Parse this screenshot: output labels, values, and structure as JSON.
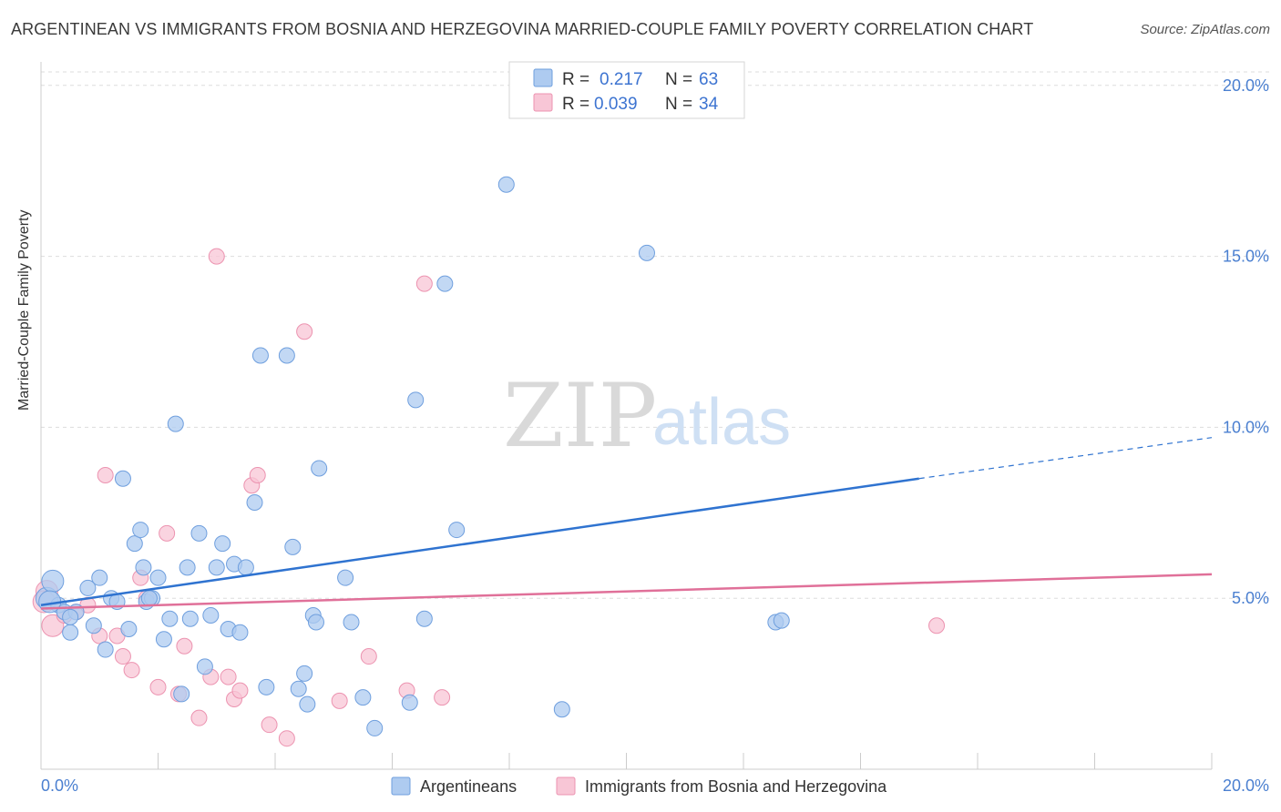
{
  "header": {
    "title": "ARGENTINEAN VS IMMIGRANTS FROM BOSNIA AND HERZEGOVINA MARRIED-COUPLE FAMILY POVERTY CORRELATION CHART",
    "source": "Source: ZipAtlas.com"
  },
  "watermark": {
    "zip": "ZIP",
    "atlas": "atlas"
  },
  "legend": {
    "rows": [
      {
        "r_label": "R =",
        "r_value": "0.217",
        "n_label": "N =",
        "n_value": "63"
      },
      {
        "r_label": "R =",
        "r_value": "0.039",
        "n_label": "N =",
        "n_value": "34"
      }
    ]
  },
  "colors": {
    "series1_fill": "#aecbf0",
    "series1_stroke": "#6f9fde",
    "series1_line": "#2f73d0",
    "series2_fill": "#f8c6d6",
    "series2_stroke": "#ec93b0",
    "series2_line": "#e07099",
    "tick_label": "#4a7fd0",
    "grid": "#dddddd"
  },
  "chart_data": {
    "type": "scatter",
    "title": "ARGENTINEAN VS IMMIGRANTS FROM BOSNIA AND HERZEGOVINA MARRIED-COUPLE FAMILY POVERTY CORRELATION CHART",
    "xlabel": "",
    "ylabel": "Married-Couple Family Poverty",
    "xlim": [
      0,
      20
    ],
    "ylim": [
      0,
      20.5
    ],
    "x_tick_labels": [
      "0.0%",
      "20.0%"
    ],
    "y_ticks": [
      5,
      10,
      15,
      20
    ],
    "y_tick_labels": [
      "5.0%",
      "10.0%",
      "15.0%",
      "20.0%"
    ],
    "grid": "horizontal dashed",
    "legend_position": "top-center",
    "series": [
      {
        "name": "Argentineans",
        "r": 0.217,
        "n": 63,
        "trend": {
          "x_start": 0,
          "y_start": 4.8,
          "x_solid_end": 15.0,
          "y_solid_end": 8.5,
          "x_end": 20,
          "y_end": 9.7
        },
        "points": [
          [
            0.1,
            5.0
          ],
          [
            0.2,
            5.5
          ],
          [
            0.3,
            4.8
          ],
          [
            0.4,
            4.6
          ],
          [
            0.5,
            4.0
          ],
          [
            0.6,
            4.6
          ],
          [
            0.8,
            5.3
          ],
          [
            0.9,
            4.2
          ],
          [
            1.0,
            5.6
          ],
          [
            1.1,
            3.5
          ],
          [
            1.2,
            5.0
          ],
          [
            1.3,
            4.9
          ],
          [
            1.4,
            8.5
          ],
          [
            1.5,
            4.1
          ],
          [
            1.6,
            6.6
          ],
          [
            1.7,
            7.0
          ],
          [
            1.75,
            5.9
          ],
          [
            1.8,
            4.9
          ],
          [
            1.9,
            5.0
          ],
          [
            2.0,
            5.6
          ],
          [
            2.1,
            3.8
          ],
          [
            2.2,
            4.4
          ],
          [
            2.3,
            10.1
          ],
          [
            2.4,
            2.2
          ],
          [
            2.5,
            5.9
          ],
          [
            2.55,
            4.4
          ],
          [
            2.7,
            6.9
          ],
          [
            2.8,
            3.0
          ],
          [
            2.9,
            4.5
          ],
          [
            3.0,
            5.9
          ],
          [
            3.1,
            6.6
          ],
          [
            3.2,
            4.1
          ],
          [
            3.3,
            6.0
          ],
          [
            3.4,
            4.0
          ],
          [
            3.5,
            5.9
          ],
          [
            3.65,
            7.8
          ],
          [
            3.75,
            12.1
          ],
          [
            3.85,
            2.4
          ],
          [
            4.2,
            12.1
          ],
          [
            4.3,
            6.5
          ],
          [
            4.4,
            2.35
          ],
          [
            4.5,
            2.8
          ],
          [
            4.55,
            1.9
          ],
          [
            4.65,
            4.5
          ],
          [
            4.7,
            4.3
          ],
          [
            4.75,
            8.8
          ],
          [
            5.2,
            5.6
          ],
          [
            5.3,
            4.3
          ],
          [
            5.5,
            2.1
          ],
          [
            5.7,
            1.2
          ],
          [
            6.3,
            1.95
          ],
          [
            6.4,
            10.8
          ],
          [
            6.55,
            4.4
          ],
          [
            6.9,
            14.2
          ],
          [
            7.1,
            7.0
          ],
          [
            7.95,
            17.1
          ],
          [
            8.9,
            1.75
          ],
          [
            10.35,
            15.1
          ],
          [
            12.55,
            4.3
          ],
          [
            12.65,
            4.35
          ],
          [
            0.15,
            4.9
          ],
          [
            0.5,
            4.45
          ],
          [
            1.85,
            5.0
          ]
        ]
      },
      {
        "name": "Immigrants from Bosnia and Herzegovina",
        "r": 0.039,
        "n": 34,
        "trend": {
          "x_start": 0,
          "y_start": 4.7,
          "x_end": 20,
          "y_end": 5.7
        },
        "points": [
          [
            0.1,
            5.2
          ],
          [
            0.2,
            4.2
          ],
          [
            0.4,
            4.5
          ],
          [
            0.6,
            4.6
          ],
          [
            0.8,
            4.8
          ],
          [
            1.0,
            3.9
          ],
          [
            1.1,
            8.6
          ],
          [
            1.3,
            3.9
          ],
          [
            1.4,
            3.3
          ],
          [
            1.55,
            2.9
          ],
          [
            1.7,
            5.6
          ],
          [
            1.8,
            5.0
          ],
          [
            2.0,
            2.4
          ],
          [
            2.15,
            6.9
          ],
          [
            2.35,
            2.2
          ],
          [
            2.45,
            3.6
          ],
          [
            2.7,
            1.5
          ],
          [
            2.9,
            2.7
          ],
          [
            3.0,
            15.0
          ],
          [
            3.2,
            2.7
          ],
          [
            3.3,
            2.05
          ],
          [
            3.4,
            2.3
          ],
          [
            3.6,
            8.3
          ],
          [
            3.7,
            8.6
          ],
          [
            3.9,
            1.3
          ],
          [
            4.2,
            0.9
          ],
          [
            4.5,
            12.8
          ],
          [
            5.1,
            2.0
          ],
          [
            5.6,
            3.3
          ],
          [
            6.25,
            2.3
          ],
          [
            6.55,
            14.2
          ],
          [
            6.85,
            2.1
          ],
          [
            15.3,
            4.2
          ],
          [
            0.05,
            4.9
          ]
        ]
      }
    ]
  },
  "bottom_legend": {
    "items": [
      {
        "label": "Argentineans"
      },
      {
        "label": "Immigrants from Bosnia and Herzegovina"
      }
    ]
  }
}
